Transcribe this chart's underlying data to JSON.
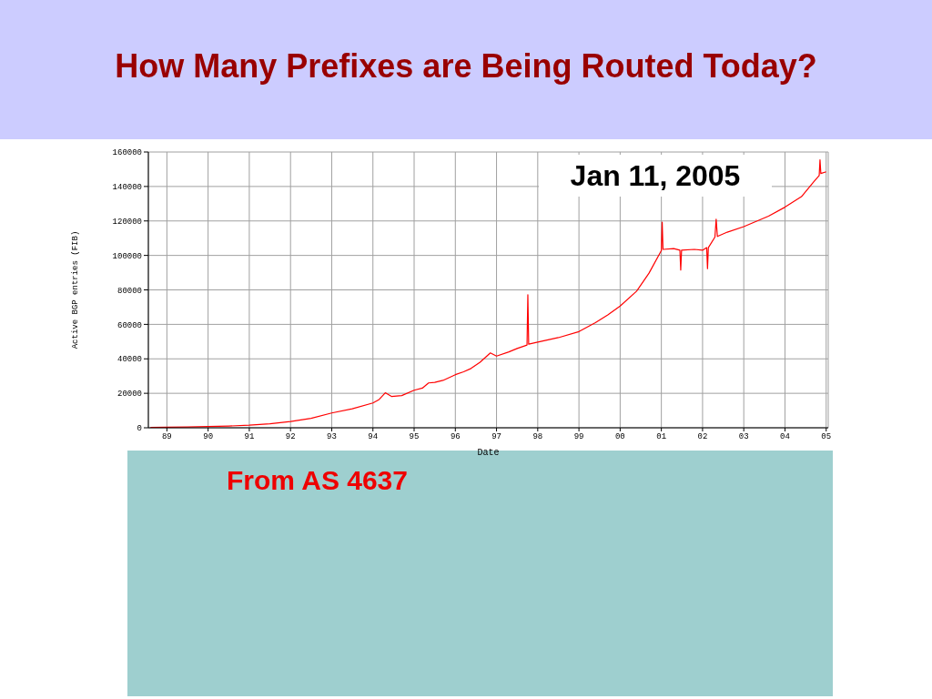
{
  "chart_data": {
    "type": "line",
    "title": "How Many Prefixes are Being Routed Today?",
    "xlabel": "Date",
    "ylabel": "Active BGP entries (FIB)",
    "annotations": [
      "Jan 11, 2005",
      "From AS 4637"
    ],
    "x": [
      1988.6,
      1989.0,
      1989.5,
      1990.0,
      1990.5,
      1991.0,
      1991.5,
      1992.0,
      1992.5,
      1993.0,
      1993.5,
      1994.0,
      1994.15,
      1994.3,
      1994.45,
      1994.7,
      1995.0,
      1995.2,
      1995.35,
      1995.5,
      1995.7,
      1996.0,
      1996.2,
      1996.38,
      1996.6,
      1996.85,
      1997.0,
      1997.3,
      1997.5,
      1997.74,
      1997.76,
      1997.78,
      1998.0,
      1998.5,
      1999.0,
      1999.4,
      1999.7,
      2000.0,
      2000.4,
      2000.7,
      2001.0,
      2001.02,
      2001.04,
      2001.3,
      2001.45,
      2001.47,
      2001.49,
      2001.8,
      2002.0,
      2002.1,
      2002.12,
      2002.14,
      2002.3,
      2002.33,
      2002.36,
      2002.6,
      2003.0,
      2003.6,
      2004.0,
      2004.4,
      2004.7,
      2004.83,
      2004.85,
      2004.87,
      2005.0
    ],
    "values": [
      200,
      300,
      500,
      700,
      1000,
      1500,
      2300,
      3600,
      5500,
      8600,
      11000,
      14400,
      16400,
      20300,
      18200,
      18700,
      21800,
      23000,
      26000,
      26300,
      27500,
      30800,
      32500,
      34400,
      38000,
      43400,
      41600,
      44000,
      46000,
      48000,
      77200,
      48500,
      49700,
      52300,
      55800,
      61000,
      65500,
      70600,
      79300,
      89700,
      102800,
      119300,
      103500,
      104000,
      103000,
      91500,
      103000,
      103500,
      103000,
      104500,
      92300,
      104500,
      110600,
      121000,
      111000,
      113500,
      116700,
      122800,
      128000,
      134100,
      142800,
      146300,
      155500,
      147500,
      148500
    ],
    "color": "#ff0000",
    "xlim": [
      1988.55,
      2005.05
    ],
    "xticks": [
      {
        "value": 1989,
        "label": "89"
      },
      {
        "value": 1990,
        "label": "90"
      },
      {
        "value": 1991,
        "label": "91"
      },
      {
        "value": 1992,
        "label": "92"
      },
      {
        "value": 1993,
        "label": "93"
      },
      {
        "value": 1994,
        "label": "94"
      },
      {
        "value": 1995,
        "label": "95"
      },
      {
        "value": 1996,
        "label": "96"
      },
      {
        "value": 1997,
        "label": "97"
      },
      {
        "value": 1998,
        "label": "98"
      },
      {
        "value": 1999,
        "label": "99"
      },
      {
        "value": 2000,
        "label": "00"
      },
      {
        "value": 2001,
        "label": "01"
      },
      {
        "value": 2002,
        "label": "02"
      },
      {
        "value": 2003,
        "label": "03"
      },
      {
        "value": 2004,
        "label": "04"
      },
      {
        "value": 2005,
        "label": "05"
      }
    ],
    "ylim": [
      0,
      160000
    ],
    "yticks": [
      0,
      20000,
      40000,
      60000,
      80000,
      100000,
      120000,
      140000,
      160000
    ],
    "grid": true
  }
}
